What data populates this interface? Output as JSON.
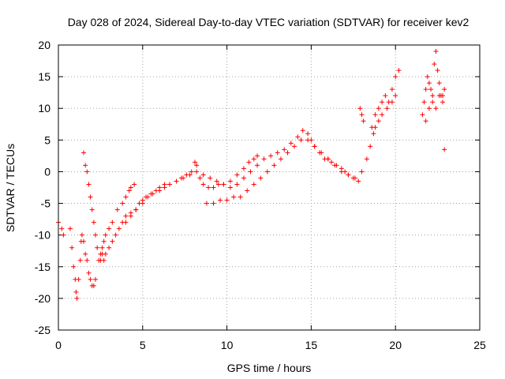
{
  "chart_data": {
    "type": "scatter",
    "title": "Day 028 of 2024, Sidereal Day-to-day VTEC variation (SDTVAR) for receiver kev2",
    "xlabel": "GPS time / hours",
    "ylabel": "SDTVAR / TECUs",
    "xlim": [
      0,
      25
    ],
    "ylim": [
      -25,
      20
    ],
    "xticks": [
      "0",
      "5",
      "10",
      "15",
      "20",
      "25"
    ],
    "yticks": [
      "-25",
      "-20",
      "-15",
      "-10",
      "-5",
      "0",
      "5",
      "10",
      "15",
      "20"
    ],
    "grid": true,
    "marker": "+",
    "color": "#ff0000",
    "series": [
      {
        "name": "SDTVAR",
        "x": [
          0.0,
          0.2,
          0.3,
          0.7,
          0.8,
          0.9,
          1.0,
          1.05,
          1.1,
          1.2,
          1.3,
          1.35,
          1.4,
          1.5,
          1.6,
          1.7,
          1.8,
          1.9,
          2.0,
          2.1,
          2.2,
          1.5,
          1.6,
          1.7,
          1.8,
          1.9,
          2.0,
          2.1,
          2.2,
          2.3,
          2.5,
          2.6,
          2.7,
          2.8,
          3.0,
          3.2,
          3.5,
          3.8,
          4.0,
          4.2,
          4.3,
          4.5,
          2.4,
          2.5,
          2.6,
          2.7,
          2.8,
          3.0,
          3.2,
          3.4,
          3.6,
          3.8,
          4.0,
          4.3,
          4.6,
          4.8,
          5.0,
          5.2,
          5.5,
          5.8,
          6.0,
          6.3,
          6.6,
          7.0,
          7.3,
          7.6,
          7.9,
          8.1,
          8.2,
          8.4,
          8.6,
          8.9,
          9.2,
          9.5,
          9.8,
          10.2,
          10.6,
          11.0,
          11.3,
          11.6,
          11.8,
          4.0,
          4.3,
          4.6,
          5.0,
          5.3,
          5.6,
          6.0,
          6.3,
          6.6,
          7.0,
          7.4,
          7.8,
          8.2,
          8.6,
          9.0,
          9.4,
          9.8,
          10.2,
          10.6,
          11.0,
          11.4,
          11.8,
          12.2,
          12.6,
          13.0,
          13.4,
          13.8,
          14.2,
          14.5,
          14.8,
          15.0,
          15.2,
          15.5,
          15.8,
          16.0,
          16.2,
          16.5,
          16.8,
          17.0,
          17.2,
          17.5,
          17.8,
          8.8,
          9.2,
          9.6,
          10.0,
          10.4,
          10.8,
          11.2,
          11.6,
          12.0,
          12.4,
          12.8,
          13.2,
          13.6,
          14.0,
          14.4,
          14.8,
          15.2,
          15.6,
          16.0,
          16.4,
          16.8,
          17.2,
          17.6,
          18.0,
          18.3,
          18.5,
          18.7,
          17.9,
          18.0,
          18.1,
          18.6,
          18.8,
          19.0,
          19.2,
          19.4,
          19.6,
          19.8,
          20.0,
          20.2,
          18.8,
          19.0,
          19.2,
          19.5,
          19.8,
          20.0,
          21.6,
          21.7,
          21.8,
          21.9,
          22.0,
          22.1,
          22.2,
          22.3,
          22.4,
          22.5,
          22.6,
          22.7,
          22.8,
          22.9,
          21.8,
          22.0,
          22.2,
          22.4,
          22.6,
          22.8,
          22.9
        ],
        "y": [
          -8,
          -9,
          -10,
          -9,
          -12,
          -15,
          -17,
          -19,
          -20,
          -17,
          -14,
          -11,
          -10,
          -11,
          -13,
          -14,
          -16,
          -17,
          -18,
          -18,
          -17,
          3,
          1,
          0,
          -2,
          -4,
          -6,
          -8,
          -10,
          -12,
          -13,
          -12,
          -11,
          -10,
          -9,
          -8,
          -6,
          -5,
          -4,
          -3,
          -2.5,
          -2,
          -14,
          -14,
          -13,
          -14,
          -13,
          -12,
          -11,
          -10,
          -9,
          -8,
          -7,
          -6.5,
          -6,
          -5,
          -4.5,
          -4,
          -3.5,
          -3,
          -2.5,
          -2,
          -2,
          -1.5,
          -1,
          -0.5,
          0,
          1.5,
          1,
          -1,
          -2,
          -2.5,
          -2.5,
          -2,
          -2,
          -1.5,
          -0.5,
          0.5,
          1.5,
          2,
          2.5,
          -8,
          -7,
          -6,
          -5,
          -4,
          -3.5,
          -3,
          -2.5,
          -2,
          -1.5,
          -1,
          -0.5,
          0,
          -0.5,
          -1,
          -1.5,
          -2,
          -2.5,
          -2,
          -1,
          0,
          1,
          2,
          2.5,
          3,
          3.5,
          4.5,
          5.5,
          6.5,
          6,
          5,
          4,
          3,
          2,
          2,
          1.5,
          1,
          0.5,
          0,
          -0.5,
          -1,
          -1.5,
          -5,
          -5,
          -4.5,
          -4.5,
          -4,
          -4,
          -3,
          -2,
          -1,
          0,
          1,
          2,
          3,
          4,
          5,
          5,
          4,
          3,
          2,
          1,
          0,
          -0.5,
          -1,
          0,
          2,
          4,
          6,
          10,
          9,
          8,
          7,
          9,
          10,
          11,
          12,
          11,
          13,
          15,
          16,
          7,
          8,
          9,
          10,
          11,
          12,
          9,
          11,
          13,
          15,
          14,
          13,
          12,
          17,
          19,
          16,
          14,
          12,
          11,
          13,
          8,
          10,
          11,
          10,
          12,
          12,
          3.5
        ]
      }
    ]
  }
}
